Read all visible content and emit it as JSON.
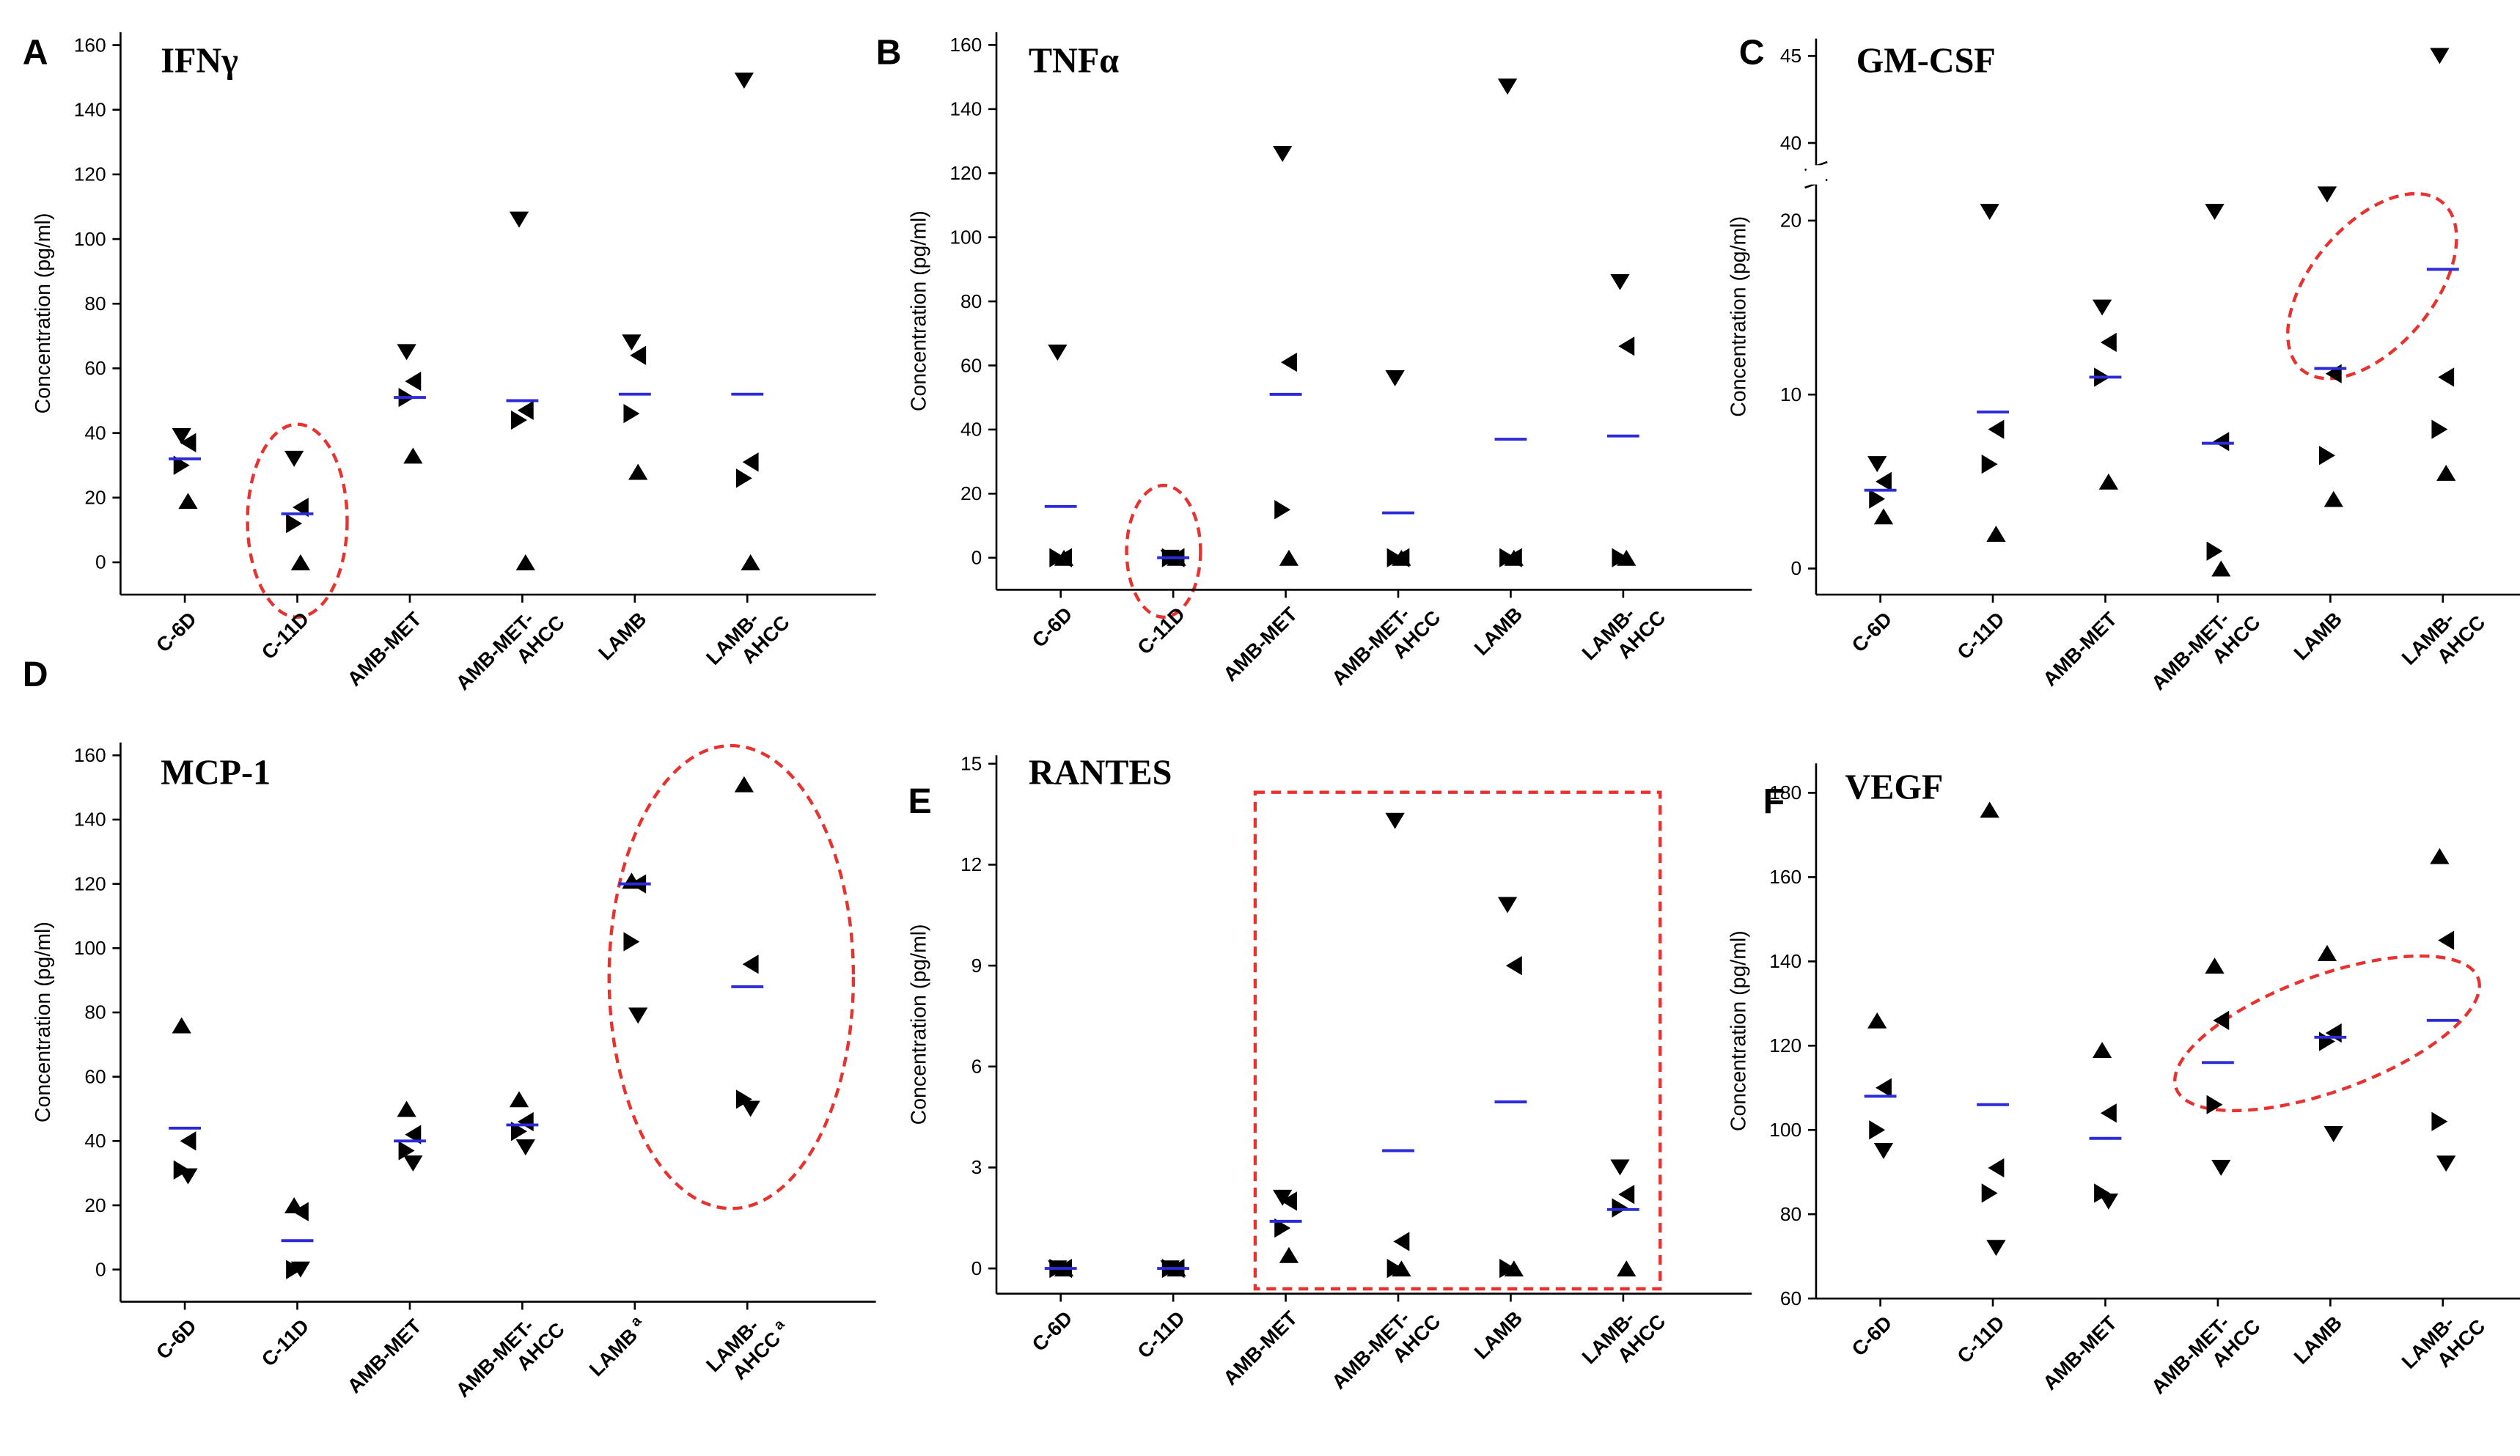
{
  "chart_data": [
    {
      "type": "scatter",
      "letter": "A",
      "title": "IFNγ",
      "ylabel": "Concentration (pg/ml)",
      "categories": [
        [
          "C-6D"
        ],
        [
          "C-11D"
        ],
        [
          "AMB-MET"
        ],
        [
          "AMB-MET-",
          "AHCC"
        ],
        [
          "LAMB"
        ],
        [
          "LAMB-",
          "AHCC"
        ]
      ],
      "markers": [
        "v",
        "<",
        ">",
        "^"
      ],
      "points": [
        [
          39,
          37,
          30,
          19
        ],
        [
          32,
          17,
          12,
          0
        ],
        [
          65,
          56,
          51,
          33
        ],
        [
          106,
          47,
          44,
          0
        ],
        [
          68,
          64,
          46,
          28
        ],
        [
          149,
          31,
          26,
          0
        ]
      ],
      "means": [
        32,
        15,
        51,
        50,
        52,
        52
      ],
      "ylim": [
        -10,
        164
      ],
      "yticks": [
        0,
        20,
        40,
        60,
        80,
        100,
        120,
        140,
        160
      ],
      "mean_color": "#2b2bd9",
      "marker_color": "#000000"
    },
    {
      "type": "scatter",
      "letter": "B",
      "title": "TNFα",
      "ylabel": "Concentration (pg/ml)",
      "categories": [
        [
          "C-6D"
        ],
        [
          "C-11D"
        ],
        [
          "AMB-MET"
        ],
        [
          "AMB-MET-",
          "AHCC"
        ],
        [
          "LAMB"
        ],
        [
          "LAMB-",
          "AHCC"
        ]
      ],
      "markers": [
        "v",
        "<",
        ">",
        "^"
      ],
      "points": [
        [
          64,
          0,
          0,
          0
        ],
        [
          0,
          0,
          0,
          0
        ],
        [
          126,
          61,
          15,
          0
        ],
        [
          56,
          0,
          0,
          0
        ],
        [
          147,
          0,
          0,
          0
        ],
        [
          86,
          66,
          0,
          0
        ]
      ],
      "means": [
        16,
        0,
        51,
        14,
        37,
        38
      ],
      "ylim": [
        -10,
        164
      ],
      "yticks": [
        0,
        20,
        40,
        60,
        80,
        100,
        120,
        140,
        160
      ],
      "mean_color": "#2b2bd9",
      "marker_color": "#000000"
    },
    {
      "type": "scatter",
      "letter": "C",
      "title": "GM-CSF",
      "ylabel": "Concentration (pg/ml)",
      "categories": [
        [
          "C-6D"
        ],
        [
          "C-11D"
        ],
        [
          "AMB-MET"
        ],
        [
          "AMB-MET-",
          "AHCC"
        ],
        [
          "LAMB"
        ],
        [
          "LAMB-",
          "AHCC"
        ]
      ],
      "markers": [
        "v",
        "<",
        ">",
        "^"
      ],
      "points": [
        [
          6,
          5,
          4,
          3
        ],
        [
          20.5,
          8,
          6,
          2
        ],
        [
          15,
          13,
          11,
          5
        ],
        [
          20.5,
          7.3,
          1,
          0
        ],
        [
          21.5,
          11.2,
          6.5,
          4
        ],
        [
          45,
          11,
          8,
          5.5
        ]
      ],
      "means": [
        4.5,
        9,
        11,
        7.2,
        11.5,
        17.2
      ],
      "ylim": [
        -1.5,
        46
      ],
      "ybreak": [
        21.8,
        39
      ],
      "yticks": [
        0,
        10,
        20,
        40,
        45
      ],
      "mean_color": "#2b2bd9",
      "marker_color": "#000000"
    },
    {
      "type": "scatter",
      "letter": "D",
      "title": "MCP-1",
      "ylabel": "Concentration (pg/ml)",
      "categories": [
        [
          "C-6D"
        ],
        [
          "C-11D"
        ],
        [
          "AMB-MET"
        ],
        [
          "AMB-MET-",
          "AHCC"
        ],
        [
          "LAMB"
        ],
        [
          "LAMB-",
          "AHCC"
        ]
      ],
      "category_notes": [
        null,
        null,
        null,
        null,
        "a",
        "a"
      ],
      "markers": [
        "^",
        "<",
        ">",
        "v"
      ],
      "points": [
        [
          76,
          40,
          31,
          29
        ],
        [
          20,
          18,
          0,
          0
        ],
        [
          50,
          42,
          37,
          33
        ],
        [
          53,
          46,
          43,
          38
        ],
        [
          121,
          120,
          102,
          79
        ],
        [
          151,
          95,
          53,
          50
        ]
      ],
      "means": [
        44,
        9,
        40,
        45,
        120,
        88
      ],
      "ylim": [
        -10,
        164
      ],
      "yticks": [
        0,
        20,
        40,
        60,
        80,
        100,
        120,
        140,
        160
      ],
      "mean_color": "#2b2bd9",
      "marker_color": "#000000"
    },
    {
      "type": "scatter",
      "letter": "E",
      "title": "RANTES",
      "ylabel": "Concentration (pg/ml)",
      "categories": [
        [
          "C-6D"
        ],
        [
          "C-11D"
        ],
        [
          "AMB-MET"
        ],
        [
          "AMB-MET-",
          "AHCC"
        ],
        [
          "LAMB"
        ],
        [
          "LAMB-",
          "AHCC"
        ]
      ],
      "markers": [
        "v",
        "<",
        ">",
        "^"
      ],
      "points": [
        [
          0,
          0,
          0,
          0
        ],
        [
          0,
          0,
          0,
          0
        ],
        [
          2.1,
          2.0,
          1.2,
          0.4
        ],
        [
          13.3,
          0.8,
          0,
          0
        ],
        [
          10.8,
          9.0,
          0,
          0
        ],
        [
          3.0,
          2.2,
          1.8,
          0
        ]
      ],
      "means": [
        0,
        0,
        1.4,
        3.5,
        4.95,
        1.75
      ],
      "ylim": [
        -0.75,
        15.25
      ],
      "yticks": [
        0,
        3,
        6,
        9,
        12,
        15
      ],
      "mean_color": "#2b2bd9",
      "marker_color": "#000000"
    },
    {
      "type": "scatter",
      "letter": "F",
      "title": "VEGF",
      "ylabel": "Concentration (pg/ml)",
      "categories": [
        [
          "C-6D"
        ],
        [
          "C-11D"
        ],
        [
          "AMB-MET"
        ],
        [
          "AMB-MET-",
          "AHCC"
        ],
        [
          "LAMB"
        ],
        [
          "LAMB-",
          "AHCC"
        ]
      ],
      "markers": [
        "^",
        "<",
        ">",
        "v"
      ],
      "points": [
        [
          126,
          110,
          100,
          95
        ],
        [
          176,
          91,
          85,
          72
        ],
        [
          119,
          104,
          85,
          83
        ],
        [
          139,
          126,
          106,
          91
        ],
        [
          142,
          123,
          121,
          99
        ],
        [
          165,
          145,
          102,
          92
        ]
      ],
      "means": [
        108,
        106,
        98,
        116,
        122,
        126
      ],
      "ylim": [
        60,
        187
      ],
      "yticks": [
        60,
        80,
        100,
        120,
        140,
        160,
        180
      ],
      "mean_color": "#2b2bd9",
      "marker_color": "#000000"
    }
  ]
}
